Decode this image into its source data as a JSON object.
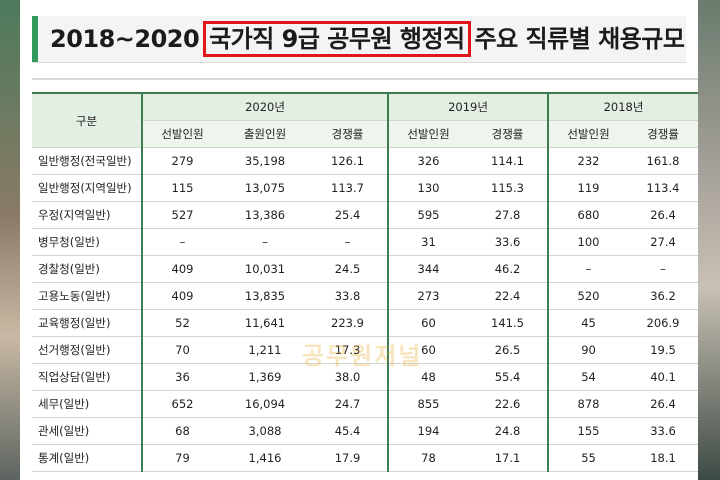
{
  "title": {
    "prefix": "2018~2020",
    "highlight": "국가직 9급 공무원 행정직",
    "suffix": "주요 직류별 채용규모"
  },
  "table": {
    "corner": "구분",
    "years": [
      "2020년",
      "2019년",
      "2018년"
    ],
    "subheaders": {
      "selected": "선발인원",
      "applicants": "출원인원",
      "ratio": "경쟁률"
    },
    "rows": [
      {
        "category": "일반행정(전국일반)",
        "y2020": [
          "279",
          "35,198",
          "126.1"
        ],
        "y2019": [
          "326",
          "114.1"
        ],
        "y2018": [
          "232",
          "161.8"
        ]
      },
      {
        "category": "일반행정(지역일반)",
        "y2020": [
          "115",
          "13,075",
          "113.7"
        ],
        "y2019": [
          "130",
          "115.3"
        ],
        "y2018": [
          "119",
          "113.4"
        ]
      },
      {
        "category": "우정(지역일반)",
        "y2020": [
          "527",
          "13,386",
          "25.4"
        ],
        "y2019": [
          "595",
          "27.8"
        ],
        "y2018": [
          "680",
          "26.4"
        ]
      },
      {
        "category": "병무청(일반)",
        "y2020": [
          "–",
          "–",
          "–"
        ],
        "y2019": [
          "31",
          "33.6"
        ],
        "y2018": [
          "100",
          "27.4"
        ]
      },
      {
        "category": "경찰청(일반)",
        "y2020": [
          "409",
          "10,031",
          "24.5"
        ],
        "y2019": [
          "344",
          "46.2"
        ],
        "y2018": [
          "–",
          "–"
        ]
      },
      {
        "category": "고용노동(일반)",
        "y2020": [
          "409",
          "13,835",
          "33.8"
        ],
        "y2019": [
          "273",
          "22.4"
        ],
        "y2018": [
          "520",
          "36.2"
        ]
      },
      {
        "category": "교육행정(일반)",
        "y2020": [
          "52",
          "11,641",
          "223.9"
        ],
        "y2019": [
          "60",
          "141.5"
        ],
        "y2018": [
          "45",
          "206.9"
        ]
      },
      {
        "category": "선거행정(일반)",
        "y2020": [
          "70",
          "1,211",
          "17.3"
        ],
        "y2019": [
          "60",
          "26.5"
        ],
        "y2018": [
          "90",
          "19.5"
        ]
      },
      {
        "category": "직업상담(일반)",
        "y2020": [
          "36",
          "1,369",
          "38.0"
        ],
        "y2019": [
          "48",
          "55.4"
        ],
        "y2018": [
          "54",
          "40.1"
        ]
      },
      {
        "category": "세무(일반)",
        "y2020": [
          "652",
          "16,094",
          "24.7"
        ],
        "y2019": [
          "855",
          "22.6"
        ],
        "y2018": [
          "878",
          "26.4"
        ]
      },
      {
        "category": "관세(일반)",
        "y2020": [
          "68",
          "3,088",
          "45.4"
        ],
        "y2019": [
          "194",
          "24.8"
        ],
        "y2018": [
          "155",
          "33.6"
        ]
      },
      {
        "category": "통계(일반)",
        "y2020": [
          "79",
          "1,416",
          "17.9"
        ],
        "y2019": [
          "78",
          "17.1"
        ],
        "y2018": [
          "55",
          "18.1"
        ]
      }
    ]
  },
  "watermark": "공무원저널",
  "colors": {
    "accent": "#2f9a5c",
    "highlight_box": "#e0161b",
    "header_bg": "#e4efe4",
    "grid_line": "#3d7d4f"
  }
}
